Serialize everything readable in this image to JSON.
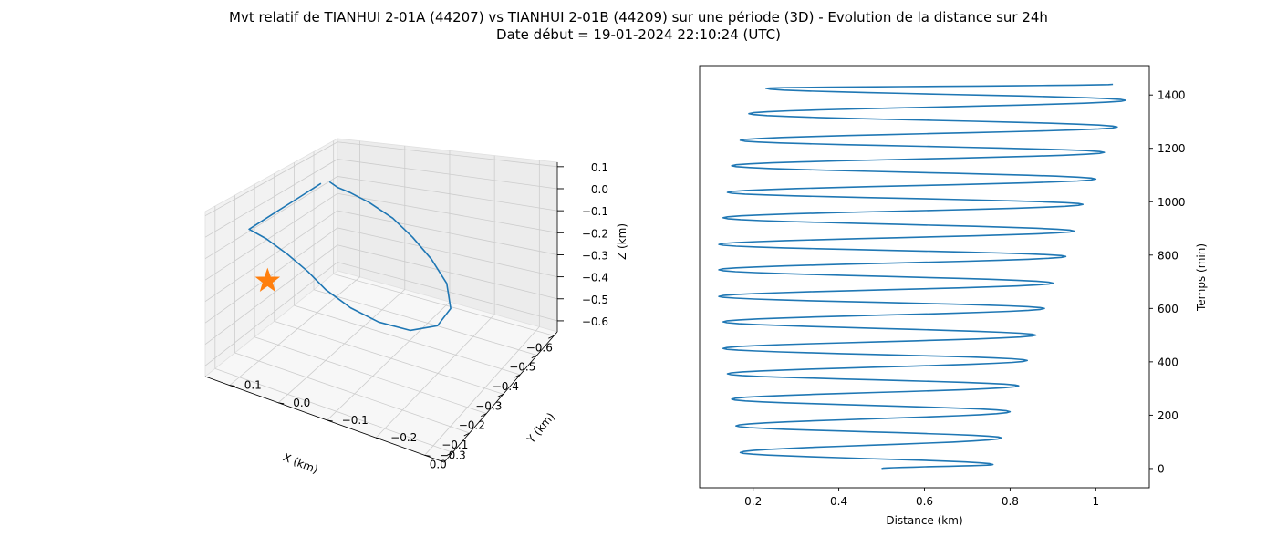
{
  "figure": {
    "title": "Mvt relatif de TIANHUI 2-01A (44207) vs TIANHUI 2-01B (44209) sur une période (3D) - Evolution de la distance sur 24h",
    "subtitle": "Date début = 19-01-2024 22:10:24 (UTC)"
  },
  "chart_data": [
    {
      "type": "line3d",
      "xlabel": "X (km)",
      "ylabel": "Y (km)",
      "zlabel": "Z (km)",
      "xticks": [
        "−0.6",
        "−0.5",
        "−0.4",
        "−0.3",
        "−0.2",
        "−0.1",
        "0.0"
      ],
      "yticks": [
        "−0.3",
        "−0.2",
        "−0.1",
        "0.0",
        "0.1"
      ],
      "zticks": [
        "−0.6",
        "−0.5",
        "−0.4",
        "−0.3",
        "−0.2",
        "−0.1",
        "0.0",
        "0.1"
      ],
      "xlim": [
        -0.62,
        0.05
      ],
      "ylim": [
        -0.34,
        0.15
      ],
      "zlim": [
        -0.65,
        0.12
      ],
      "grid": true,
      "series": [
        {
          "color": "#1f77b4",
          "points": [
            [
              -0.42,
              0.1,
              0.02
            ],
            [
              -0.3,
              0.1,
              0.02
            ],
            [
              -0.17,
              0.1,
              0.02
            ],
            [
              -0.05,
              0.1,
              0.02
            ],
            [
              -0.04,
              0.06,
              0.01
            ],
            [
              -0.05,
              0.02,
              -0.04
            ],
            [
              -0.08,
              -0.01,
              -0.12
            ],
            [
              -0.1,
              -0.04,
              -0.2
            ],
            [
              -0.13,
              -0.08,
              -0.28
            ],
            [
              -0.18,
              -0.12,
              -0.36
            ],
            [
              -0.25,
              -0.16,
              -0.43
            ],
            [
              -0.35,
              -0.18,
              -0.48
            ],
            [
              -0.45,
              -0.17,
              -0.49
            ],
            [
              -0.53,
              -0.13,
              -0.46
            ],
            [
              -0.57,
              -0.08,
              -0.4
            ],
            [
              -0.59,
              -0.03,
              -0.33
            ],
            [
              -0.58,
              0.01,
              -0.24
            ],
            [
              -0.55,
              0.05,
              -0.15
            ],
            [
              -0.5,
              0.07,
              -0.07
            ],
            [
              -0.46,
              0.08,
              -0.02
            ],
            [
              -0.44,
              0.09,
              0.02
            ]
          ]
        }
      ],
      "marker": {
        "symbol": "star",
        "color": "#ff7f0e",
        "point": [
          0.03,
          0.03,
          -0.12
        ]
      }
    },
    {
      "type": "line",
      "xlabel": "Distance (km)",
      "ylabel": "Temps (min)",
      "xticks": [
        0.2,
        0.4,
        0.6,
        0.8,
        1.0
      ],
      "yticks": [
        0,
        200,
        400,
        600,
        800,
        1000,
        1200,
        1400
      ],
      "xlim": [
        0.075,
        1.125
      ],
      "ylim": [
        -72,
        1510
      ],
      "grid": false,
      "y_axis_side": "right",
      "series": [
        {
          "color": "#1f77b4",
          "points": [
            [
              0.5,
              0
            ],
            [
              0.76,
              15
            ],
            [
              0.17,
              60
            ],
            [
              0.78,
              115
            ],
            [
              0.16,
              160
            ],
            [
              0.8,
              213
            ],
            [
              0.15,
              260
            ],
            [
              0.82,
              310
            ],
            [
              0.14,
              355
            ],
            [
              0.84,
              405
            ],
            [
              0.13,
              450
            ],
            [
              0.86,
              500
            ],
            [
              0.13,
              550
            ],
            [
              0.88,
              600
            ],
            [
              0.12,
              645
            ],
            [
              0.9,
              695
            ],
            [
              0.12,
              745
            ],
            [
              0.93,
              795
            ],
            [
              0.12,
              840
            ],
            [
              0.95,
              890
            ],
            [
              0.13,
              940
            ],
            [
              0.97,
              990
            ],
            [
              0.14,
              1035
            ],
            [
              1.0,
              1085
            ],
            [
              0.15,
              1135
            ],
            [
              1.02,
              1185
            ],
            [
              0.17,
              1230
            ],
            [
              1.05,
              1280
            ],
            [
              0.19,
              1330
            ],
            [
              1.07,
              1380
            ],
            [
              0.23,
              1425
            ],
            [
              1.04,
              1440
            ]
          ]
        }
      ]
    }
  ]
}
